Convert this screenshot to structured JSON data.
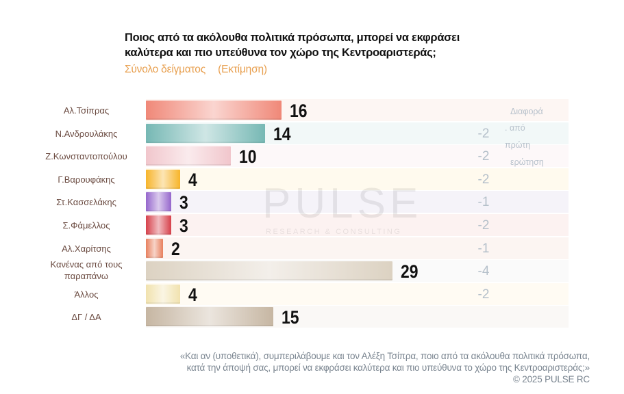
{
  "title_lines": [
    "Ποιος από τα ακόλουθα πολιτικά πρόσωπα, μπορεί να εκφράσει",
    "καλύτερα και πιο υπεύθυνα τον χώρο της Κεντροαριστεράς;"
  ],
  "subtitle": [
    "Σύνολο δείγματος",
    "(Εκτίμηση)"
  ],
  "diff_header": [
    "Διαφορά",
    ". από",
    "πρώτη",
    "ερώτηση"
  ],
  "watermark": {
    "logo": "PULSE",
    "tagline": "RESEARCH & CONSULTING"
  },
  "footer": {
    "lines": [
      "«Και αν (υποθετικά), συμπεριλάβουμε και τον Αλέξη Τσίπρα, ποιο από τα ακόλουθα πολιτικά πρόσωπα,",
      "κατά την άποψή σας, μπορεί να εκφράσει καλύτερα και πιο υπεύθυνα το χώρο της Κεντροαριστεράς;»"
    ],
    "copyright": "©  2025  PULSE RC"
  },
  "chart_data": {
    "type": "bar",
    "orientation": "horizontal",
    "title": "Ποιος από τα ακόλουθα πολιτικά πρόσωπα, μπορεί να εκφράσει καλύτερα και πιο υπεύθυνα τον χώρο της Κεντροαριστεράς;",
    "categories": [
      "Αλ.Τσίπρας",
      "Ν.Ανδρουλάκης",
      "Ζ.Κωνσταντοπούλου",
      "Γ.Βαρουφάκης",
      "Στ.Κασσελάκης",
      "Σ.Φάμελλος",
      "Αλ.Χαρίτσης",
      "Κανένας από τους παραπάνω",
      "Άλλος",
      "ΔΓ / ΔΑ"
    ],
    "values": [
      16,
      14,
      10,
      4,
      3,
      3,
      2,
      29,
      4,
      15
    ],
    "diffs": [
      "",
      "-2",
      "-2",
      "-2",
      "-1",
      "-2",
      "-1",
      "-4",
      "-2",
      ""
    ],
    "colors": [
      "#f08878",
      "#76b8b4",
      "#f1c6cc",
      "#f7b42a",
      "#9566cc",
      "#d6404a",
      "#e8805e",
      "#dcd2c2",
      "#f1e2ae",
      "#c6b6a2"
    ],
    "row_backgrounds": [
      "#fdf6f3",
      "#f2f8f8",
      "#fdf8f9",
      "#fffaee",
      "#f5f3f9",
      "#fcf2f1",
      "#fcf5f2",
      "#fafafa",
      "#fffbf3",
      "#faf8f6"
    ],
    "xlim": [
      0,
      50
    ]
  }
}
